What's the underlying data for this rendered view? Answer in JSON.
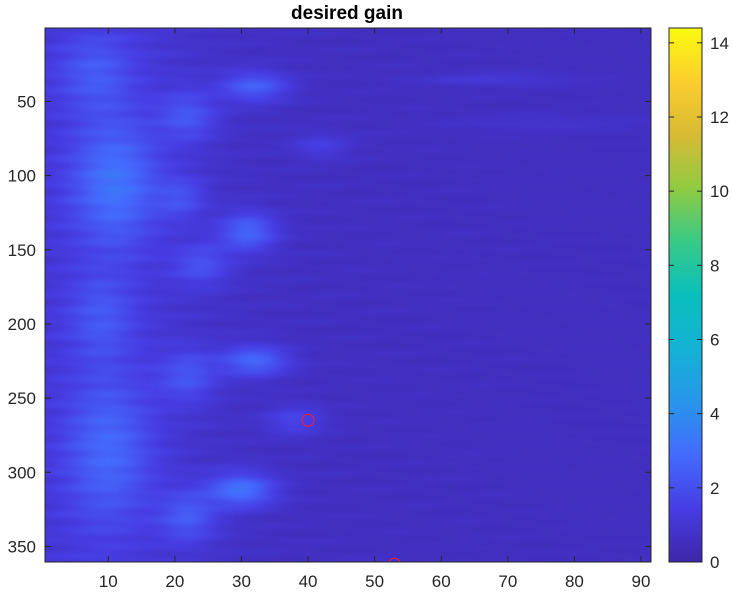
{
  "chart_data": {
    "type": "heatmap",
    "title": "desired gain",
    "xlabel": "",
    "ylabel": "",
    "x_range": [
      0.5,
      91.5
    ],
    "y_range": [
      0.5,
      360.5
    ],
    "y_direction": "reversed",
    "x_ticks": [
      10,
      20,
      30,
      40,
      50,
      60,
      70,
      80,
      90
    ],
    "y_ticks": [
      50,
      100,
      150,
      200,
      250,
      300,
      350
    ],
    "colorbar": {
      "colormap": "parula",
      "range": [
        0,
        14.4
      ],
      "ticks": [
        0,
        2,
        4,
        6,
        8,
        10,
        12,
        14
      ]
    },
    "value_description_note": "",
    "background_value": 0.6,
    "blobs": [
      {
        "x": 11,
        "y": 105,
        "sx": 4.5,
        "sy": 30,
        "value": 2.6
      },
      {
        "x": 10,
        "y": 285,
        "sx": 4.5,
        "sy": 35,
        "value": 2.1
      },
      {
        "x": 8,
        "y": 30,
        "sx": 4,
        "sy": 18,
        "value": 1.5
      },
      {
        "x": 9,
        "y": 195,
        "sx": 3.5,
        "sy": 20,
        "value": 1.4
      },
      {
        "x": 30,
        "y": 312,
        "sx": 3.5,
        "sy": 8,
        "value": 3.0
      },
      {
        "x": 32,
        "y": 225,
        "sx": 3.5,
        "sy": 7,
        "value": 2.6
      },
      {
        "x": 31,
        "y": 138,
        "sx": 3,
        "sy": 9,
        "value": 2.5
      },
      {
        "x": 32,
        "y": 40,
        "sx": 3.5,
        "sy": 7,
        "value": 2.3
      },
      {
        "x": 22,
        "y": 330,
        "sx": 3,
        "sy": 12,
        "value": 1.9
      },
      {
        "x": 22,
        "y": 235,
        "sx": 3,
        "sy": 12,
        "value": 1.7
      },
      {
        "x": 22,
        "y": 60,
        "sx": 3,
        "sy": 12,
        "value": 1.7
      },
      {
        "x": 24,
        "y": 160,
        "sx": 3,
        "sy": 10,
        "value": 1.6
      },
      {
        "x": 21,
        "y": 115,
        "sx": 2.5,
        "sy": 10,
        "value": 1.4
      },
      {
        "x": 38,
        "y": 265,
        "sx": 3,
        "sy": 7,
        "value": 1.3
      },
      {
        "x": 42,
        "y": 80,
        "sx": 3,
        "sy": 6,
        "value": 1.0
      },
      {
        "x": 68,
        "y": 35,
        "sx": 8,
        "sy": 3,
        "value": 0.7
      },
      {
        "x": 75,
        "y": 65,
        "sx": 10,
        "sy": 4,
        "value": 0.4
      }
    ],
    "markers": [
      {
        "shape": "circle",
        "color": "#e0204a",
        "x": 40,
        "y": 265
      },
      {
        "shape": "circle",
        "color": "#e0204a",
        "x": 53,
        "y": 362
      }
    ]
  }
}
